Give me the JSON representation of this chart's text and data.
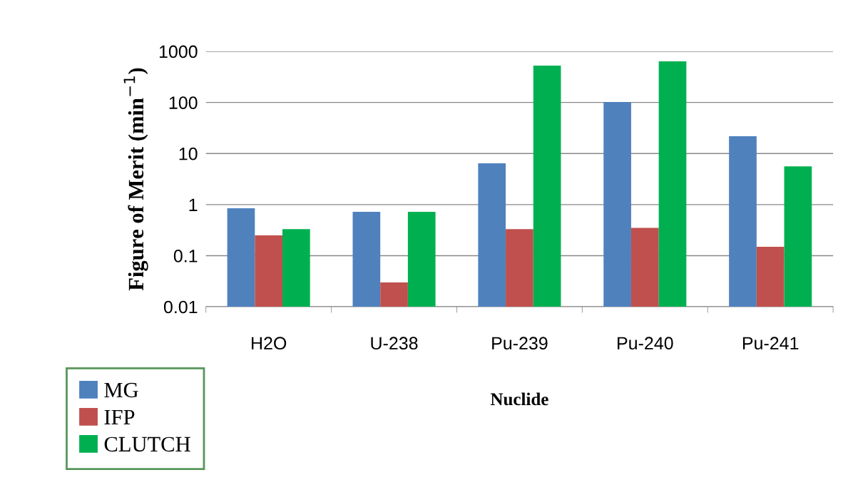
{
  "chart_data": {
    "type": "bar",
    "xlabel": "Nuclide",
    "ylabel": "Figure of Merit (min$^{−1}$)",
    "categories": [
      "H2O",
      "U-238",
      "Pu-239",
      "Pu-240",
      "Pu-241"
    ],
    "series": [
      {
        "name": "MG",
        "color": "#4f81bd",
        "values": [
          0.85,
          0.72,
          6.4,
          102,
          21.8
        ]
      },
      {
        "name": "IFP",
        "color": "#c0504d",
        "values": [
          0.25,
          0.03,
          0.33,
          0.35,
          0.149
        ]
      },
      {
        "name": "CLUTCH",
        "color": "#00b050",
        "values": [
          0.33,
          0.72,
          525,
          640,
          5.6
        ]
      }
    ],
    "log": true,
    "ylim": [
      0.01,
      1000
    ],
    "yticks": [
      0.01,
      0.1,
      1,
      10,
      100,
      1000
    ],
    "grid": "y",
    "legend": "bottom left"
  }
}
